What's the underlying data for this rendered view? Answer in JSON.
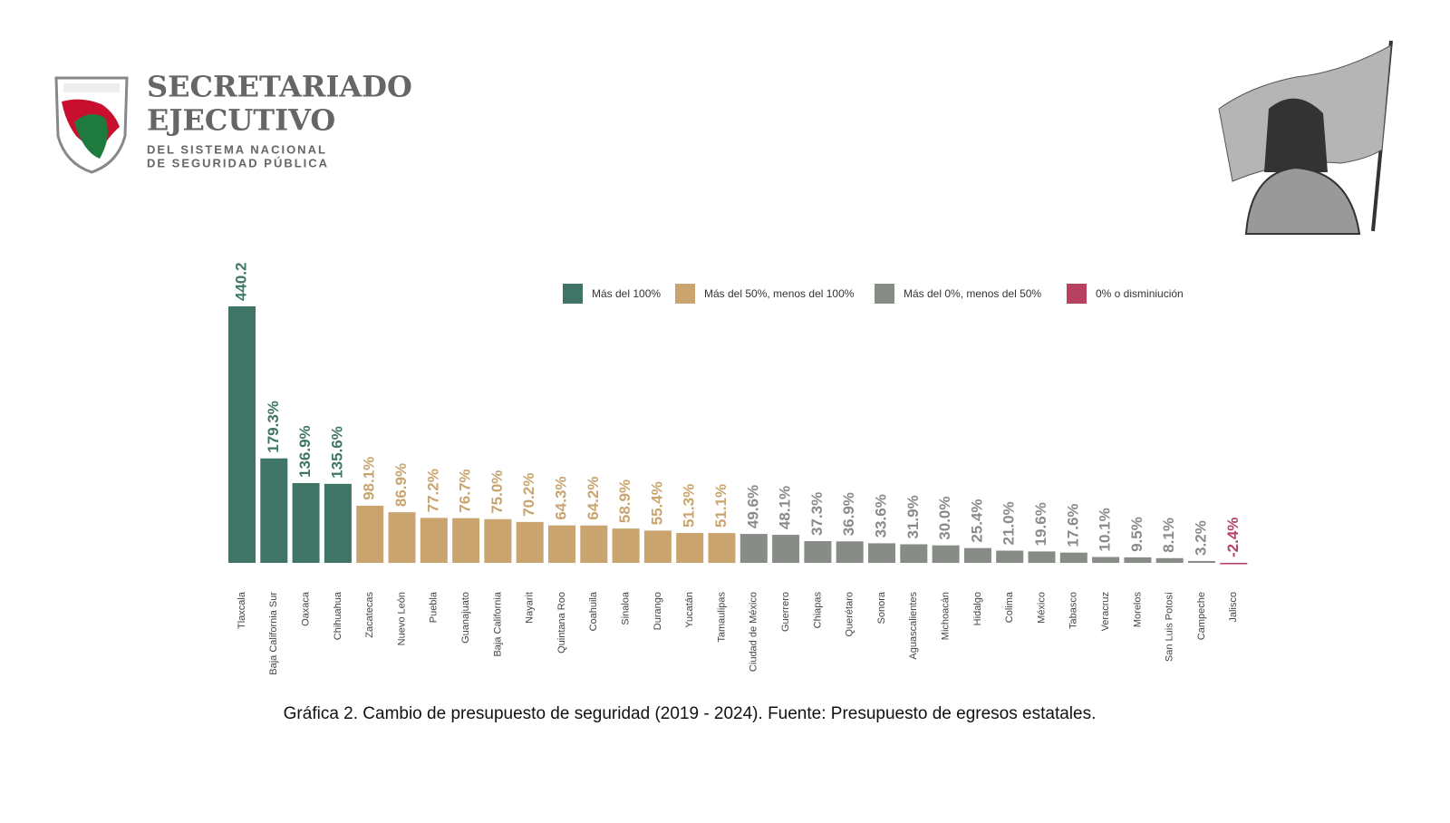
{
  "header": {
    "org_line1": "SECRETARIADO",
    "org_line2": "EJECUTIVO",
    "org_line3": "DEL SISTEMA NACIONAL",
    "org_line4": "DE SEGURIDAD PÚBLICA"
  },
  "chart_data": {
    "type": "bar",
    "caption": "Gráfica 2. Cambio de presupuesto de seguridad (2019 - 2024). Fuente: Presupuesto de egresos estatales.",
    "categories": [
      "Tlaxcala",
      "Baja California Sur",
      "Oaxaca",
      "Chihuahua",
      "Zacatecas",
      "Nuevo León",
      "Puebla",
      "Guanajuato",
      "Baja California",
      "Nayarit",
      "Quintana Roo",
      "Coahuila",
      "Sinaloa",
      "Durango",
      "Yucatán",
      "Tamaulipas",
      "Ciudad de México",
      "Guerrero",
      "Chiapas",
      "Querétaro",
      "Sonora",
      "Aguascalientes",
      "Michoacán",
      "Hidalgo",
      "Colima",
      "México",
      "Tabasco",
      "Veracruz",
      "Morelos",
      "San Luis Potosí",
      "Campeche",
      "Jalisco"
    ],
    "series": [
      {
        "name": "Más del 100%",
        "color": "#3f7566",
        "values": [
          440.2,
          179.3,
          136.9,
          135.6,
          null,
          null,
          null,
          null,
          null,
          null,
          null,
          null,
          null,
          null,
          null,
          null,
          null,
          null,
          null,
          null,
          null,
          null,
          null,
          null,
          null,
          null,
          null,
          null,
          null,
          null,
          null,
          null
        ],
        "value_labels": [
          "440.2",
          "179.3%",
          "136.9%",
          "135.6%",
          null,
          null,
          null,
          null,
          null,
          null,
          null,
          null,
          null,
          null,
          null,
          null,
          null,
          null,
          null,
          null,
          null,
          null,
          null,
          null,
          null,
          null,
          null,
          null,
          null,
          null,
          null,
          null
        ]
      },
      {
        "name": "Más del 50%, menos del 100%",
        "color": "#c9a46e",
        "values": [
          null,
          null,
          null,
          null,
          98.1,
          86.9,
          77.2,
          76.7,
          75.0,
          70.2,
          64.3,
          64.2,
          58.9,
          55.4,
          51.3,
          51.1,
          null,
          null,
          null,
          null,
          null,
          null,
          null,
          null,
          null,
          null,
          null,
          null,
          null,
          null,
          null,
          null
        ],
        "value_labels": [
          null,
          null,
          null,
          null,
          "98.1%",
          "86.9%",
          "77.2%",
          "76.7%",
          "75.0%",
          "70.2%",
          "64.3%",
          "64.2%",
          "58.9%",
          "55.4%",
          "51.3%",
          "51.1%",
          null,
          null,
          null,
          null,
          null,
          null,
          null,
          null,
          null,
          null,
          null,
          null,
          null,
          null,
          null,
          null
        ]
      },
      {
        "name": "Más del 0%, menos del 50%",
        "color": "#878c86",
        "values": [
          null,
          null,
          null,
          null,
          null,
          null,
          null,
          null,
          null,
          null,
          null,
          null,
          null,
          null,
          null,
          null,
          49.6,
          48.1,
          37.3,
          36.9,
          33.6,
          31.9,
          30.0,
          25.4,
          21.0,
          19.6,
          17.6,
          10.1,
          9.5,
          8.1,
          3.2,
          null
        ],
        "value_labels": [
          null,
          null,
          null,
          null,
          null,
          null,
          null,
          null,
          null,
          null,
          null,
          null,
          null,
          null,
          null,
          null,
          "49.6%",
          "48.1%",
          "37.3%",
          "36.9%",
          "33.6%",
          "31.9%",
          "30.0%",
          "25.4%",
          "21.0%",
          "19.6%",
          "17.6%",
          "10.1%",
          "9.5%",
          "8.1%",
          "3.2%",
          null
        ]
      },
      {
        "name": "0% o disminiución",
        "color": "#b5405f",
        "values": [
          null,
          null,
          null,
          null,
          null,
          null,
          null,
          null,
          null,
          null,
          null,
          null,
          null,
          null,
          null,
          null,
          null,
          null,
          null,
          null,
          null,
          null,
          null,
          null,
          null,
          null,
          null,
          null,
          null,
          null,
          null,
          -2.4
        ],
        "value_labels": [
          null,
          null,
          null,
          null,
          null,
          null,
          null,
          null,
          null,
          null,
          null,
          null,
          null,
          null,
          null,
          null,
          null,
          null,
          null,
          null,
          null,
          null,
          null,
          null,
          null,
          null,
          null,
          null,
          null,
          null,
          null,
          "-2.4%"
        ]
      }
    ]
  }
}
